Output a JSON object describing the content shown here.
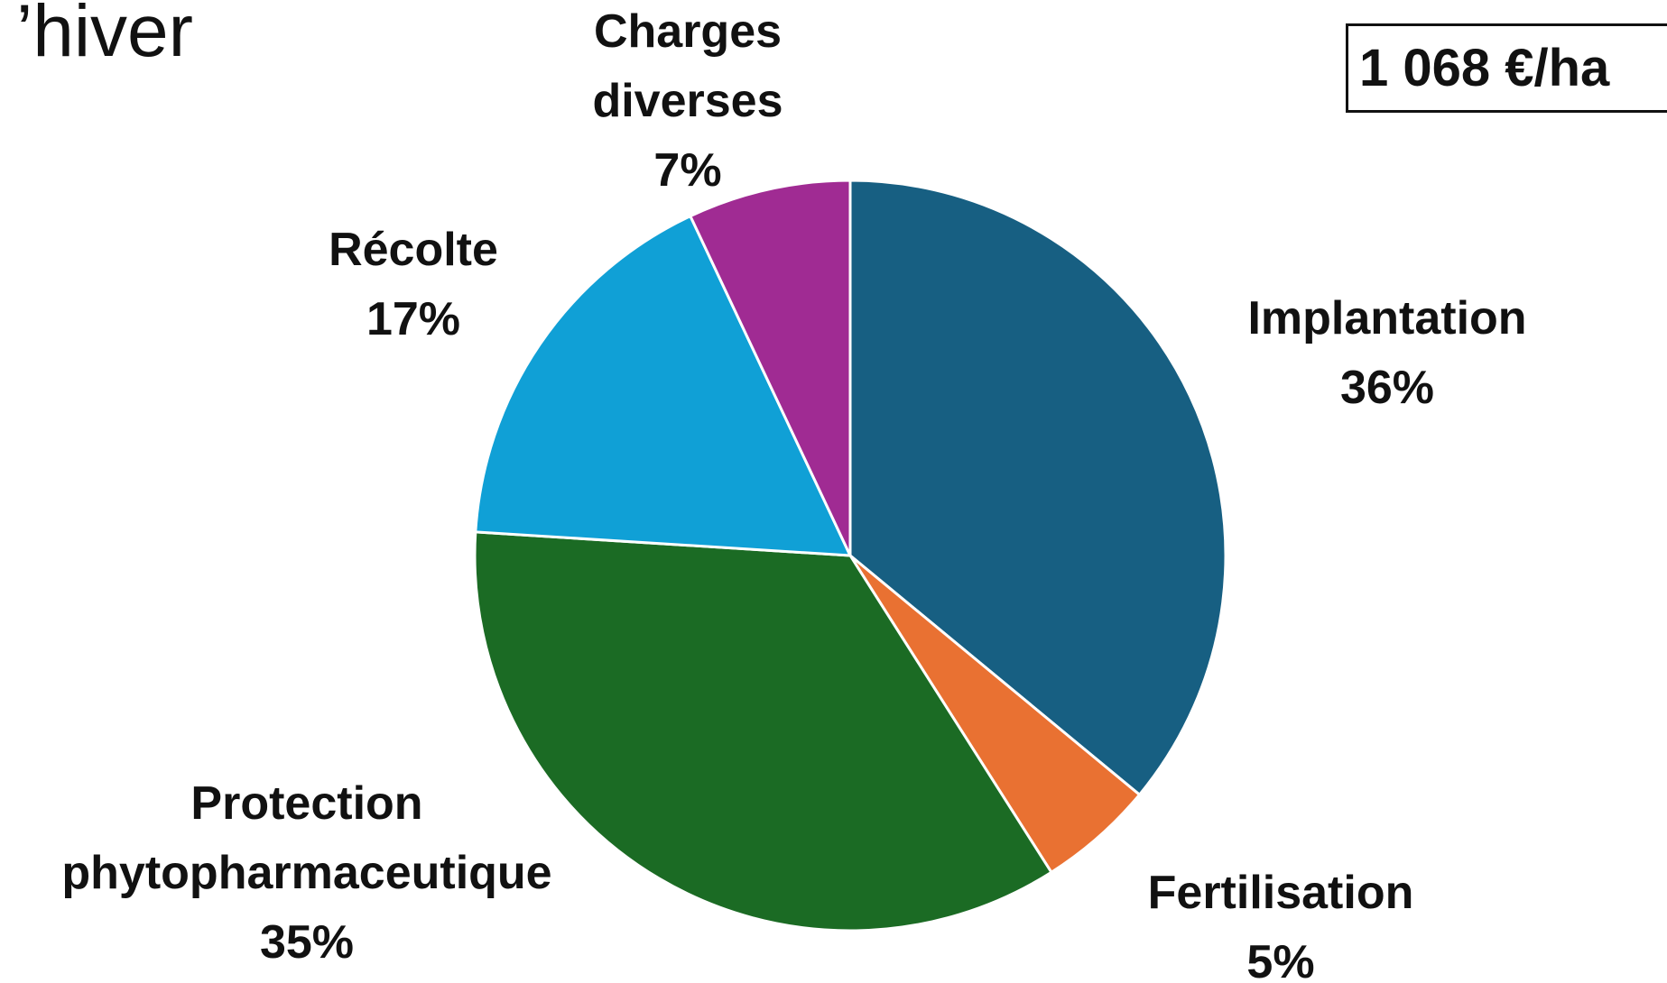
{
  "chart_data": {
    "type": "pie",
    "title": "’hiver",
    "annotation": "1 068 €/ha",
    "categories": [
      "Implantation",
      "Fertilisation",
      "Protection phytopharmaceutique",
      "Récolte",
      "Charges diverses"
    ],
    "values": [
      36,
      5,
      35,
      17,
      7
    ],
    "value_labels": [
      "36%",
      "5%",
      "35%",
      "17%",
      "7%"
    ],
    "colors": [
      "#175f82",
      "#e97132",
      "#1b6b24",
      "#10a0d6",
      "#a02b93"
    ]
  }
}
